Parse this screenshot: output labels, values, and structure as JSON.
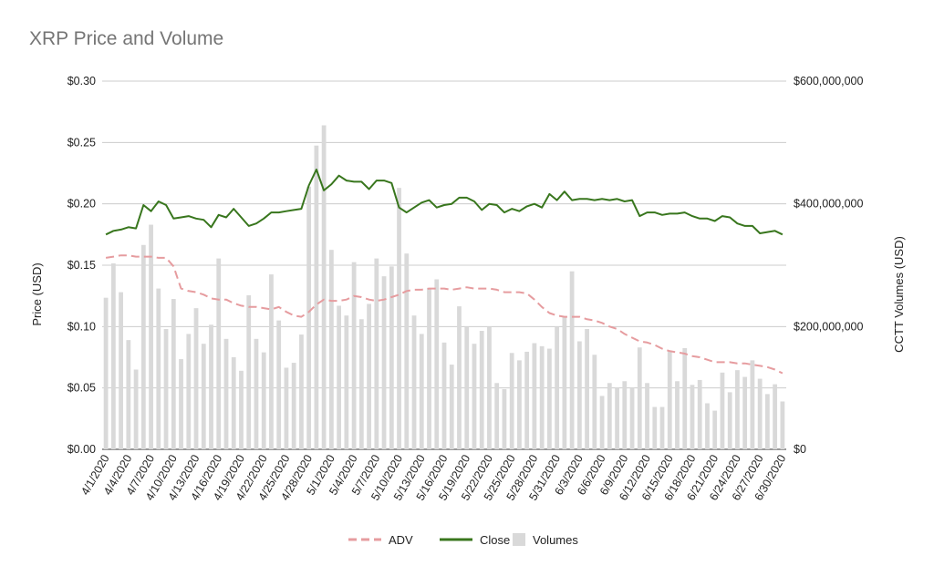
{
  "chart_data": {
    "type": "bar",
    "title": "XRP Price and Volume",
    "ylabel": "Price (USD)",
    "y2label": "CCTT Volumes (USD)",
    "ylim": [
      0,
      0.3
    ],
    "y2lim": [
      0,
      600000000
    ],
    "yticks": [
      "$0.00",
      "$0.05",
      "$0.10",
      "$0.15",
      "$0.20",
      "$0.25",
      "$0.30"
    ],
    "y2ticks": [
      "$0",
      "$200,000,000",
      "$400,000,000",
      "$600,000,000"
    ],
    "grid": true,
    "legend_position": "bottom",
    "x": [
      "4/1/2020",
      "4/2/2020",
      "4/3/2020",
      "4/4/2020",
      "4/5/2020",
      "4/6/2020",
      "4/7/2020",
      "4/8/2020",
      "4/9/2020",
      "4/10/2020",
      "4/11/2020",
      "4/12/2020",
      "4/13/2020",
      "4/14/2020",
      "4/15/2020",
      "4/16/2020",
      "4/17/2020",
      "4/18/2020",
      "4/19/2020",
      "4/20/2020",
      "4/21/2020",
      "4/22/2020",
      "4/23/2020",
      "4/24/2020",
      "4/25/2020",
      "4/26/2020",
      "4/27/2020",
      "4/28/2020",
      "4/29/2020",
      "4/30/2020",
      "5/1/2020",
      "5/2/2020",
      "5/3/2020",
      "5/4/2020",
      "5/5/2020",
      "5/6/2020",
      "5/7/2020",
      "5/8/2020",
      "5/9/2020",
      "5/10/2020",
      "5/11/2020",
      "5/12/2020",
      "5/13/2020",
      "5/14/2020",
      "5/15/2020",
      "5/16/2020",
      "5/17/2020",
      "5/18/2020",
      "5/19/2020",
      "5/20/2020",
      "5/21/2020",
      "5/22/2020",
      "5/23/2020",
      "5/24/2020",
      "5/25/2020",
      "5/26/2020",
      "5/27/2020",
      "5/28/2020",
      "5/29/2020",
      "5/30/2020",
      "5/31/2020",
      "6/1/2020",
      "6/2/2020",
      "6/3/2020",
      "6/4/2020",
      "6/5/2020",
      "6/6/2020",
      "6/7/2020",
      "6/8/2020",
      "6/9/2020",
      "6/10/2020",
      "6/11/2020",
      "6/12/2020",
      "6/13/2020",
      "6/14/2020",
      "6/15/2020",
      "6/16/2020",
      "6/17/2020",
      "6/18/2020",
      "6/19/2020",
      "6/20/2020",
      "6/21/2020",
      "6/22/2020",
      "6/23/2020",
      "6/24/2020",
      "6/25/2020",
      "6/26/2020",
      "6/27/2020",
      "6/28/2020",
      "6/29/2020",
      "6/30/2020"
    ],
    "xticks_shown": [
      "4/1/2020",
      "4/4/2020",
      "4/7/2020",
      "4/10/2020",
      "4/13/2020",
      "4/16/2020",
      "4/19/2020",
      "4/22/2020",
      "4/25/2020",
      "4/28/2020",
      "5/1/2020",
      "5/4/2020",
      "5/7/2020",
      "5/10/2020",
      "5/13/2020",
      "5/16/2020",
      "5/19/2020",
      "5/22/2020",
      "5/25/2020",
      "5/28/2020",
      "5/31/2020",
      "6/3/2020",
      "6/6/2020",
      "6/9/2020",
      "6/12/2020",
      "6/15/2020",
      "6/18/2020",
      "6/21/2020",
      "6/24/2020",
      "6/27/2020",
      "6/30/2020"
    ],
    "series": [
      {
        "name": "Volumes",
        "kind": "bar",
        "axis": "right",
        "color": "#d9d9d9",
        "values": [
          247000000,
          303000000,
          256000000,
          178000000,
          130000000,
          333000000,
          366000000,
          262000000,
          196000000,
          245000000,
          147000000,
          188000000,
          230000000,
          172000000,
          203000000,
          311000000,
          180000000,
          150000000,
          128000000,
          251000000,
          180000000,
          158000000,
          285000000,
          210000000,
          133000000,
          141000000,
          187000000,
          428000000,
          495000000,
          528000000,
          325000000,
          234000000,
          218000000,
          305000000,
          212000000,
          237000000,
          311000000,
          282000000,
          298000000,
          426000000,
          319000000,
          218000000,
          188000000,
          263000000,
          277000000,
          174000000,
          138000000,
          233000000,
          200000000,
          172000000,
          193000000,
          200000000,
          108000000,
          98000000,
          157000000,
          145000000,
          159000000,
          173000000,
          168000000,
          164000000,
          200000000,
          217000000,
          290000000,
          176000000,
          196000000,
          154000000,
          87000000,
          108000000,
          100000000,
          111000000,
          100000000,
          166000000,
          108000000,
          69000000,
          69000000,
          161000000,
          111000000,
          165000000,
          105000000,
          113000000,
          75000000,
          63000000,
          125000000,
          93000000,
          129000000,
          118000000,
          145000000,
          115000000,
          90000000,
          106000000,
          78000000
        ]
      },
      {
        "name": "ADV",
        "kind": "line",
        "style": "dashed",
        "axis": "left",
        "color": "#e69c9f",
        "values": [
          0.156,
          0.157,
          0.158,
          0.158,
          0.157,
          0.157,
          0.157,
          0.156,
          0.156,
          0.149,
          0.131,
          0.129,
          0.128,
          0.126,
          0.123,
          0.122,
          0.122,
          0.119,
          0.117,
          0.116,
          0.116,
          0.115,
          0.114,
          0.116,
          0.112,
          0.109,
          0.108,
          0.112,
          0.118,
          0.122,
          0.121,
          0.121,
          0.122,
          0.125,
          0.124,
          0.122,
          0.121,
          0.122,
          0.124,
          0.126,
          0.129,
          0.13,
          0.13,
          0.131,
          0.131,
          0.131,
          0.13,
          0.131,
          0.132,
          0.131,
          0.131,
          0.131,
          0.13,
          0.128,
          0.128,
          0.128,
          0.127,
          0.122,
          0.116,
          0.111,
          0.109,
          0.108,
          0.108,
          0.108,
          0.106,
          0.105,
          0.103,
          0.1,
          0.098,
          0.094,
          0.091,
          0.088,
          0.087,
          0.085,
          0.082,
          0.08,
          0.079,
          0.078,
          0.076,
          0.075,
          0.073,
          0.071,
          0.071,
          0.071,
          0.07,
          0.07,
          0.069,
          0.068,
          0.067,
          0.065,
          0.062
        ]
      },
      {
        "name": "Close",
        "kind": "line",
        "axis": "left",
        "color": "#38761d",
        "values": [
          0.175,
          0.178,
          0.179,
          0.181,
          0.18,
          0.199,
          0.194,
          0.202,
          0.199,
          0.188,
          0.189,
          0.19,
          0.188,
          0.187,
          0.181,
          0.191,
          0.189,
          0.196,
          0.189,
          0.182,
          0.184,
          0.188,
          0.193,
          0.193,
          0.194,
          0.195,
          0.196,
          0.215,
          0.228,
          0.211,
          0.216,
          0.223,
          0.219,
          0.218,
          0.218,
          0.212,
          0.219,
          0.219,
          0.217,
          0.197,
          0.193,
          0.197,
          0.201,
          0.203,
          0.197,
          0.199,
          0.2,
          0.205,
          0.205,
          0.202,
          0.195,
          0.2,
          0.199,
          0.193,
          0.196,
          0.194,
          0.198,
          0.2,
          0.197,
          0.208,
          0.203,
          0.21,
          0.203,
          0.204,
          0.204,
          0.203,
          0.204,
          0.203,
          0.204,
          0.202,
          0.203,
          0.19,
          0.193,
          0.193,
          0.191,
          0.192,
          0.192,
          0.193,
          0.19,
          0.188,
          0.188,
          0.186,
          0.19,
          0.189,
          0.184,
          0.182,
          0.182,
          0.176,
          0.177,
          0.178,
          0.175
        ]
      }
    ]
  }
}
